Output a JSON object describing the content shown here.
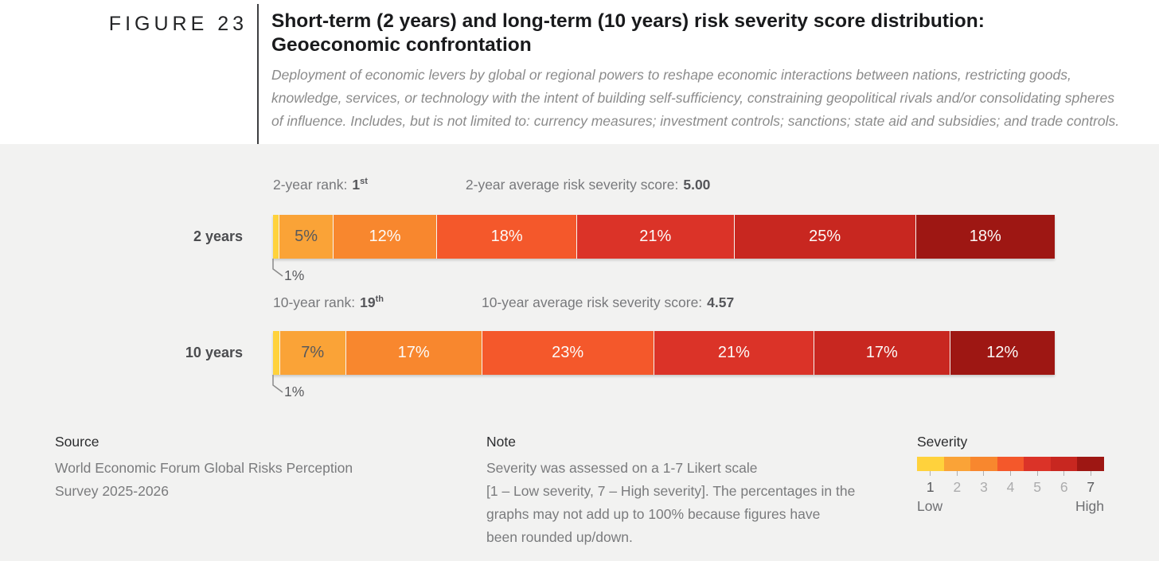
{
  "header": {
    "figure_label": "FIGURE 23",
    "title_line1": "Short-term (2 years) and long-term (10 years) risk severity score distribution:",
    "title_line2": "Geoeconomic confrontation",
    "description_lines": [
      "Deployment of economic levers by global or regional powers to reshape economic interactions between nations, restricting goods,",
      "knowledge, services, or technology with the intent of building self-sufficiency, constraining geopolitical rivals and/or consolidating spheres",
      "of influence. Includes, but is not limited to: currency measures; investment controls; sanctions; state aid and subsidies; and trade controls."
    ]
  },
  "chart_data": {
    "type": "bar",
    "subtype": "stacked-horizontal-percentage",
    "title": "Short-term (2 years) and long-term (10 years) risk severity score distribution: Geoeconomic confrontation",
    "risk_name": "Geoeconomic confrontation",
    "unit": "%",
    "severity_scale_labels": [
      "1",
      "2",
      "3",
      "4",
      "5",
      "6",
      "7"
    ],
    "severity_colors": [
      "#FFD23C",
      "#FAA337",
      "#F8872E",
      "#F4582B",
      "#DB3328",
      "#C82720",
      "#9E1713"
    ],
    "segment_dark_label_color": "#58595B",
    "series": [
      {
        "label": "2 years",
        "rank_label": "2-year rank:",
        "rank_value": "1",
        "rank_ordinal": "st",
        "score_label": "2-year average risk severity score:",
        "score_value": "5.00",
        "values_pct": [
          1,
          5,
          12,
          18,
          21,
          25,
          18
        ],
        "callout_label": "1%"
      },
      {
        "label": "10 years",
        "rank_label": "10-year rank:",
        "rank_value": "19",
        "rank_ordinal": "th",
        "score_label": "10-year average risk severity score:",
        "score_value": "4.57",
        "values_pct": [
          1,
          7,
          17,
          23,
          21,
          17,
          12
        ],
        "callout_label": "1%"
      }
    ],
    "legend": {
      "title": "Severity",
      "low": "Low",
      "high": "High",
      "position": "bottom-right"
    }
  },
  "footer": {
    "source_heading": "Source",
    "source_lines": [
      "World Economic Forum Global Risks Perception",
      "Survey 2025-2026"
    ],
    "note_heading": "Note",
    "note_lines": [
      "Severity was assessed on a 1-7 Likert scale",
      "[1 – Low severity, 7 – High severity]. The percentages in the",
      "graphs may not add up to 100% because figures have",
      "been rounded up/down."
    ]
  },
  "colors": {
    "page_background": "#F2F2F1",
    "header_background": "#FFFFFF",
    "title_text": "#191A1C",
    "muted_text": "#8B8B8B"
  }
}
